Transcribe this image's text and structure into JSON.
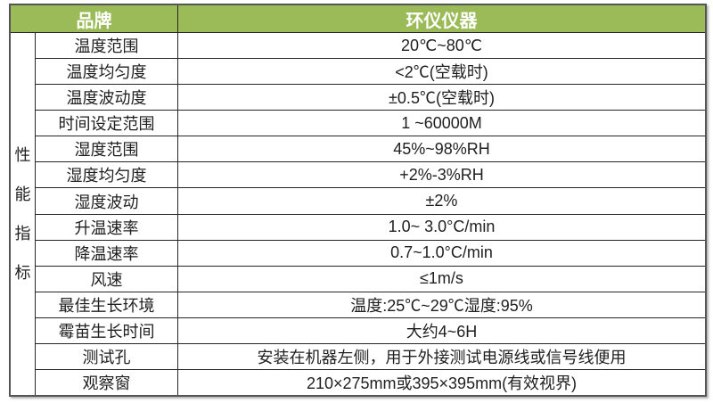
{
  "header": {
    "brand_label": "品牌",
    "brand_value": "环仪仪器"
  },
  "side_label": "性能指标",
  "rows": [
    {
      "label": "温度范围",
      "value": "20℃~80℃"
    },
    {
      "label": "温度均匀度",
      "value": "<2℃(空载时)"
    },
    {
      "label": "温度波动度",
      "value": "±0.5℃(空载时)"
    },
    {
      "label": "时间设定范围",
      "value": "1 ~60000M"
    },
    {
      "label": "湿度范围",
      "value": "45%~98%RH"
    },
    {
      "label": "湿度均匀度",
      "value": "+2%-3%RH"
    },
    {
      "label": "湿度波动",
      "value": "±2%"
    },
    {
      "label": "升温速率",
      "value": "1.0~ 3.0°C/min"
    },
    {
      "label": "降温速率",
      "value": "0.7~1.0°C/min"
    },
    {
      "label": "风速",
      "value": "≤1m/s"
    },
    {
      "label": "最佳生长环境",
      "value": "温度:25℃~29℃湿度:95%"
    },
    {
      "label": "霉苗生长时间",
      "value": "大约4~6H"
    },
    {
      "label": "测试孔",
      "value": "安装在机器左侧，用于外接测试电源线或信号线便用"
    },
    {
      "label": "观察窗",
      "value": "210×275mm或395×395mm(有效视界)"
    }
  ],
  "colors": {
    "header_bg": "#9bbb59",
    "header_text": "#ffffff",
    "grid_border": "#262626",
    "outer_border": "#555555"
  }
}
